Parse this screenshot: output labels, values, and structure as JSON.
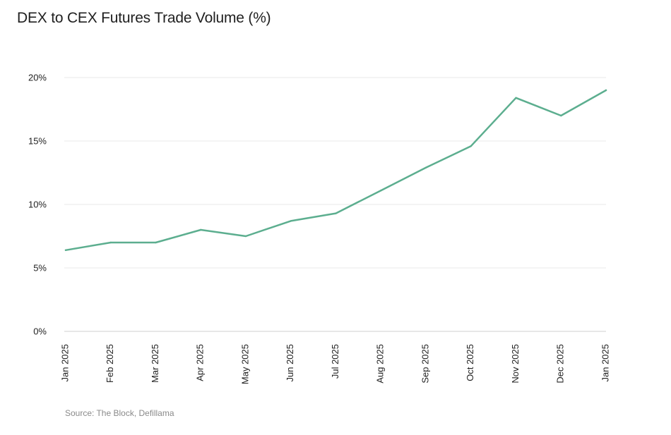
{
  "chart_data": {
    "type": "line",
    "title": "DEX to CEX Futures Trade Volume (%)",
    "source": "Source: The Block, Defillama",
    "xlabel": "",
    "ylabel": "",
    "ylim": [
      0,
      20
    ],
    "yticks": [
      0,
      5,
      10,
      15,
      20
    ],
    "ytick_labels": [
      "0%",
      "5%",
      "10%",
      "15%",
      "20%"
    ],
    "grid": true,
    "legend": "none",
    "line_color": "#5cae8f",
    "categories": [
      "Jan 2025",
      "Feb 2025",
      "Mar 2025",
      "Apr 2025",
      "May 2025",
      "Jun 2025",
      "Jul 2025",
      "Aug 2025",
      "Sep 2025",
      "Oct 2025",
      "Nov 2025",
      "Dec 2025",
      "Jan 2025"
    ],
    "series": [
      {
        "name": "DEX to CEX Futures Trade Volume (%)",
        "values": [
          6.4,
          7.0,
          7.0,
          8.0,
          7.5,
          8.7,
          9.3,
          11.1,
          12.9,
          14.6,
          18.4,
          17.0,
          19.0
        ]
      }
    ]
  }
}
